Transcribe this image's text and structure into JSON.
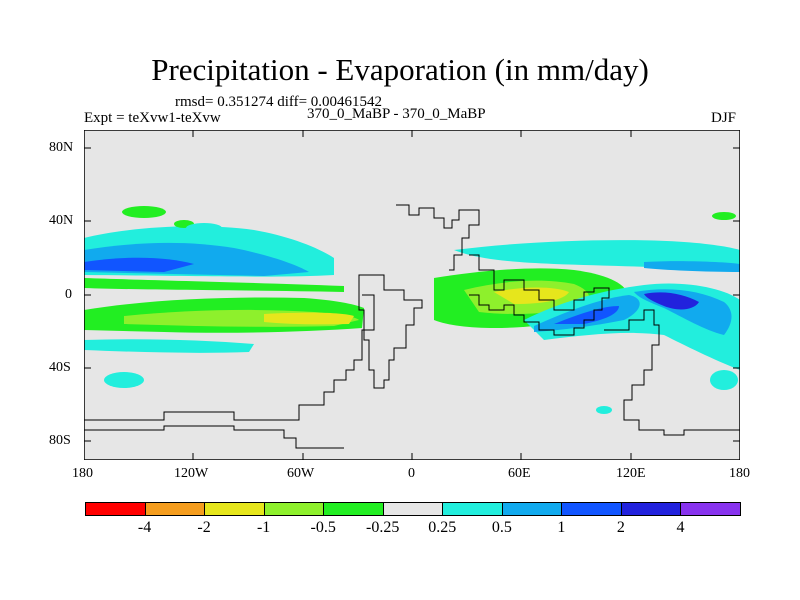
{
  "title": "Precipitation - Evaporation (in mm/day)",
  "stats": "rmsd= 0.351274  diff= 0.00461542",
  "experiment": "Expt = teXvw1-teXvw",
  "comparison": "370_0_MaBP - 370_0_MaBP",
  "season": "DJF",
  "y_axis_labels": [
    "80N",
    "40N",
    "0",
    "40S",
    "80S"
  ],
  "x_axis_labels": [
    "180",
    "120W",
    "60W",
    "0",
    "60E",
    "120E",
    "180"
  ],
  "colorbar": {
    "labels": [
      "-4",
      "-2",
      "-1",
      "-0.5",
      "-0.25",
      "0.25",
      "0.5",
      "1",
      "2",
      "4"
    ],
    "colors": [
      "#ff0000",
      "#f59d1e",
      "#e6e61c",
      "#8ef02c",
      "#22ee22",
      "#e6e6e6",
      "#22eedd",
      "#11aaee",
      "#1155ff",
      "#2222dd",
      "#8833ee"
    ]
  },
  "palette": {
    "background": "#e6e6e6",
    "cyan": "#22eedd",
    "light_blue": "#11aaee",
    "blue": "#1155ff",
    "dark_blue": "#2222dd",
    "green": "#22ee22",
    "light_green": "#8ef02c",
    "yellow": "#e6e61c"
  }
}
